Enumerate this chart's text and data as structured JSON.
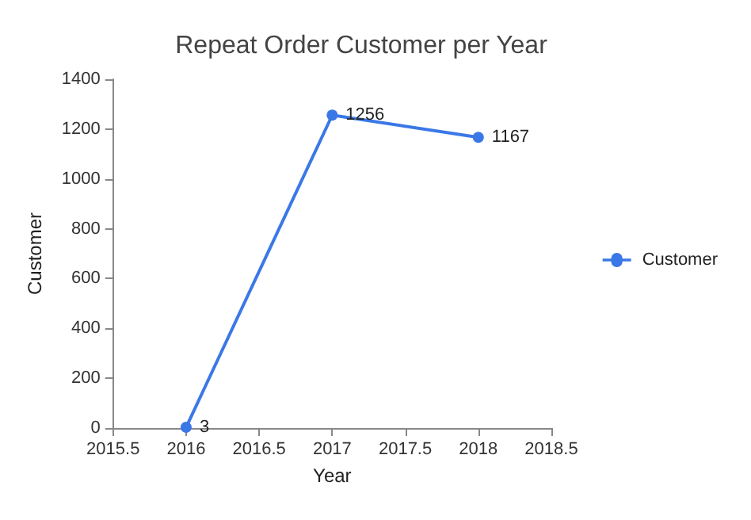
{
  "chart_data": {
    "type": "line",
    "title": "Repeat Order Customer per Year",
    "xlabel": "Year",
    "ylabel": "Customer",
    "x": [
      2016,
      2017,
      2018
    ],
    "series": [
      {
        "name": "Customer",
        "color": "#3b78e7",
        "values": [
          3,
          1256,
          1167
        ]
      }
    ],
    "xlim": [
      2015.5,
      2018.5
    ],
    "xticks": [
      2015.5,
      2016,
      2016.5,
      2017,
      2017.5,
      2018,
      2018.5
    ],
    "ylim": [
      0,
      1400
    ],
    "yticks": [
      0,
      200,
      400,
      600,
      800,
      1000,
      1200,
      1400
    ],
    "grid": false,
    "legend": "right",
    "marker": "circle",
    "line_style": "solid",
    "data_labels": true
  }
}
